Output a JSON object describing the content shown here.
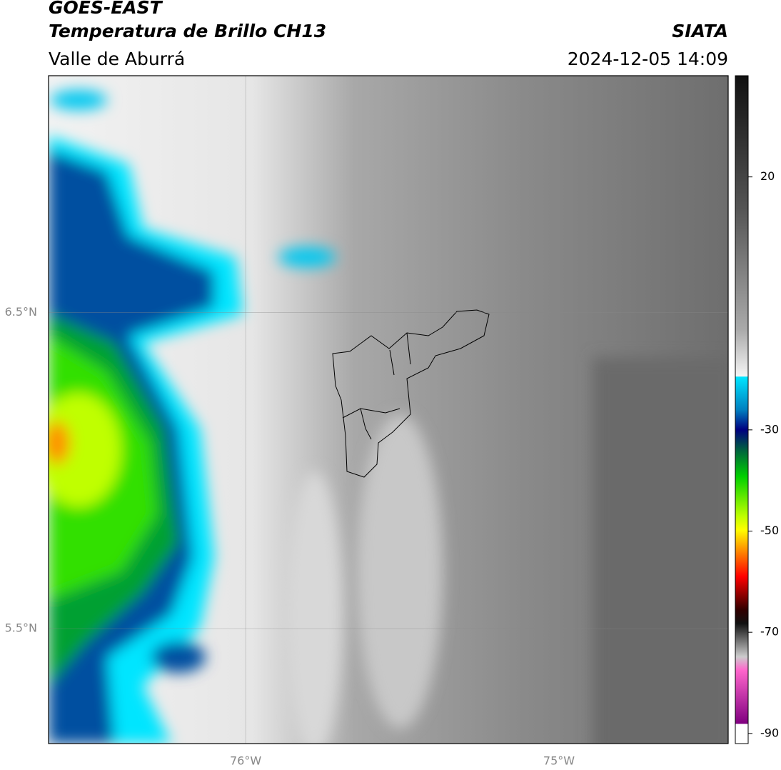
{
  "header": {
    "title": "GOES-EAST",
    "subtitle": "Temperatura de Brillo CH13",
    "region": "Valle de Aburrá",
    "source": "SIATA",
    "datetime": "2024-12-05 14:09"
  },
  "map": {
    "xlim": [
      -76.629,
      -74.46
    ],
    "ylim": [
      5.136,
      7.25
    ],
    "xticks": [
      {
        "value": -76,
        "label": "76°W"
      },
      {
        "value": -75,
        "label": "75°W"
      }
    ],
    "yticks": [
      {
        "value": 6.5,
        "label": "6.5°N"
      },
      {
        "value": 5.5,
        "label": "5.5°N"
      }
    ],
    "grid": true
  },
  "colorbar": {
    "lim": [
      -92,
      40
    ],
    "ticks": [
      20,
      -30,
      -50,
      -70,
      -90
    ]
  }
}
